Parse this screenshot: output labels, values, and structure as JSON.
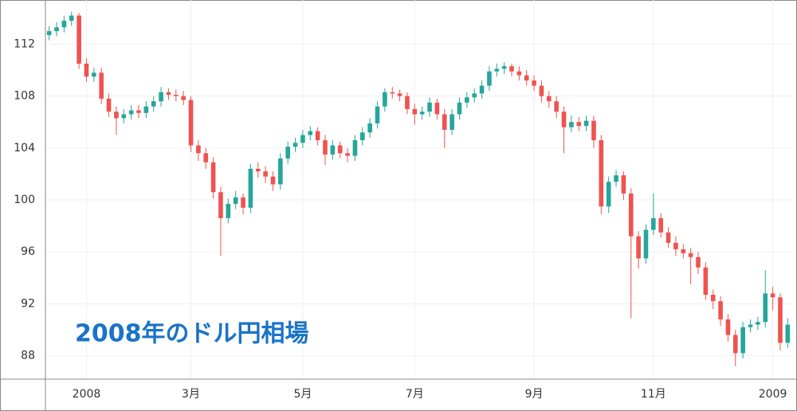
{
  "chart_data": {
    "type": "candlestick",
    "annotation": "2008年のドル円相場",
    "annotation_color": "#1a73c8",
    "up_color": "#26a69a",
    "down_color": "#ef5350",
    "grid": true,
    "categories": [
      null,
      null,
      null,
      null,
      null,
      "2008",
      null,
      null,
      null,
      null,
      null,
      null,
      null,
      null,
      null,
      null,
      null,
      null,
      null,
      "3月",
      null,
      null,
      null,
      null,
      null,
      null,
      null,
      null,
      null,
      null,
      null,
      null,
      null,
      null,
      "5月",
      null,
      null,
      null,
      null,
      null,
      null,
      null,
      null,
      null,
      null,
      null,
      null,
      null,
      null,
      "7月",
      null,
      null,
      null,
      null,
      null,
      null,
      null,
      null,
      null,
      null,
      null,
      null,
      null,
      null,
      null,
      "9月",
      null,
      null,
      null,
      null,
      null,
      null,
      null,
      null,
      null,
      null,
      null,
      null,
      null,
      null,
      null,
      "11月",
      null,
      null,
      null,
      null,
      null,
      null,
      null,
      null,
      null,
      null,
      null,
      null,
      null,
      null,
      null,
      "2009",
      null,
      null
    ],
    "open": [
      112.7,
      113.0,
      113.3,
      113.8,
      114.2,
      110.5,
      109.5,
      109.8,
      107.8,
      106.8,
      106.3,
      106.6,
      106.9,
      106.7,
      107.2,
      107.6,
      108.3,
      108.1,
      108.0,
      107.7,
      104.2,
      103.6,
      102.9,
      100.6,
      98.6,
      99.7,
      100.2,
      99.4,
      102.4,
      102.2,
      101.8,
      101.2,
      103.2,
      104.1,
      104.4,
      105.0,
      105.3,
      104.6,
      103.5,
      104.2,
      103.6,
      103.4,
      104.6,
      105.2,
      105.9,
      107.2,
      108.3,
      108.2,
      108.0,
      107.0,
      106.6,
      106.8,
      107.5,
      106.6,
      105.4,
      106.6,
      107.5,
      107.9,
      108.2,
      108.8,
      109.9,
      110.1,
      110.3,
      109.9,
      109.6,
      109.2,
      108.8,
      108.0,
      107.6,
      106.8,
      105.6,
      106.0,
      105.7,
      106.1,
      104.6,
      99.5,
      101.4,
      101.9,
      100.5,
      97.2,
      95.5,
      97.7,
      98.6,
      97.5,
      96.7,
      96.2,
      95.9,
      95.6,
      94.8,
      92.7,
      92.2,
      90.8,
      89.6,
      88.2,
      90.2,
      90.4,
      90.6,
      92.8,
      92.5,
      89.0
    ],
    "high": [
      113.4,
      113.7,
      114.2,
      114.5,
      114.4,
      110.9,
      110.2,
      110.2,
      108.2,
      107.2,
      107.0,
      107.3,
      107.3,
      107.6,
      108.0,
      108.7,
      108.6,
      108.5,
      108.4,
      108.0,
      104.6,
      104.0,
      103.3,
      101.0,
      100.1,
      100.7,
      100.5,
      102.8,
      102.9,
      102.6,
      102.2,
      103.6,
      104.5,
      104.8,
      105.4,
      105.7,
      105.6,
      105.0,
      104.6,
      104.5,
      104.0,
      105.0,
      105.6,
      106.3,
      107.6,
      108.6,
      108.7,
      108.5,
      108.3,
      107.4,
      107.2,
      107.9,
      107.8,
      107.0,
      107.0,
      107.9,
      108.3,
      108.6,
      109.2,
      110.3,
      110.5,
      110.6,
      110.5,
      110.3,
      110.0,
      109.6,
      109.2,
      108.4,
      108.0,
      107.2,
      106.5,
      106.4,
      106.5,
      106.5,
      105.0,
      101.8,
      102.3,
      102.2,
      100.9,
      97.6,
      98.1,
      100.5,
      99.0,
      97.9,
      97.2,
      96.6,
      96.3,
      96.0,
      95.2,
      93.1,
      92.6,
      91.2,
      90.0,
      90.6,
      90.8,
      91.0,
      94.6,
      93.3,
      92.8,
      90.9
    ],
    "low": [
      112.3,
      112.6,
      112.9,
      113.4,
      110.1,
      109.1,
      109.1,
      107.4,
      106.4,
      105.0,
      105.9,
      106.2,
      106.3,
      106.3,
      106.8,
      107.2,
      107.7,
      107.6,
      107.3,
      103.7,
      103.0,
      102.4,
      100.1,
      95.7,
      98.2,
      99.3,
      98.9,
      99.0,
      101.7,
      101.3,
      100.7,
      100.8,
      102.8,
      103.7,
      104.0,
      104.6,
      104.2,
      102.7,
      103.1,
      103.2,
      102.9,
      103.0,
      104.2,
      104.8,
      105.5,
      106.8,
      107.8,
      107.6,
      106.6,
      105.8,
      106.2,
      106.4,
      106.2,
      104.0,
      105.0,
      106.2,
      107.1,
      107.5,
      107.8,
      108.4,
      109.5,
      109.7,
      109.5,
      109.2,
      108.8,
      108.4,
      107.5,
      107.1,
      106.3,
      103.6,
      105.2,
      105.3,
      105.3,
      104.0,
      98.9,
      99.0,
      101.0,
      100.0,
      90.9,
      94.7,
      95.1,
      97.3,
      97.1,
      96.3,
      95.7,
      95.5,
      93.5,
      94.3,
      92.3,
      91.6,
      90.3,
      89.1,
      87.2,
      87.8,
      89.8,
      90.0,
      90.2,
      91.5,
      88.4,
      88.6
    ],
    "close": [
      113.0,
      113.3,
      113.8,
      114.2,
      110.5,
      109.5,
      109.8,
      107.8,
      106.8,
      106.3,
      106.6,
      106.9,
      106.7,
      107.2,
      107.6,
      108.3,
      108.1,
      108.0,
      107.7,
      104.2,
      103.6,
      102.9,
      100.6,
      98.6,
      99.7,
      100.2,
      99.4,
      102.4,
      102.2,
      101.8,
      101.2,
      103.2,
      104.1,
      104.4,
      105.0,
      105.3,
      104.6,
      103.5,
      104.2,
      103.6,
      103.4,
      104.6,
      105.2,
      105.9,
      107.2,
      108.3,
      108.2,
      108.0,
      107.0,
      106.6,
      106.8,
      107.5,
      106.6,
      105.4,
      106.6,
      107.5,
      107.9,
      108.2,
      108.8,
      109.9,
      110.1,
      110.3,
      109.9,
      109.6,
      109.2,
      108.8,
      108.0,
      107.6,
      106.8,
      105.6,
      106.0,
      105.7,
      106.1,
      104.6,
      99.5,
      101.4,
      101.9,
      100.5,
      97.2,
      95.5,
      97.7,
      98.6,
      97.5,
      96.7,
      96.2,
      95.9,
      95.6,
      94.8,
      92.7,
      92.2,
      90.8,
      89.6,
      88.2,
      90.2,
      90.4,
      90.6,
      92.8,
      92.5,
      89.0,
      90.4
    ],
    "ylim": [
      86.2,
      115.4
    ],
    "yticks": [
      88,
      92,
      96,
      100,
      104,
      108,
      112
    ]
  }
}
